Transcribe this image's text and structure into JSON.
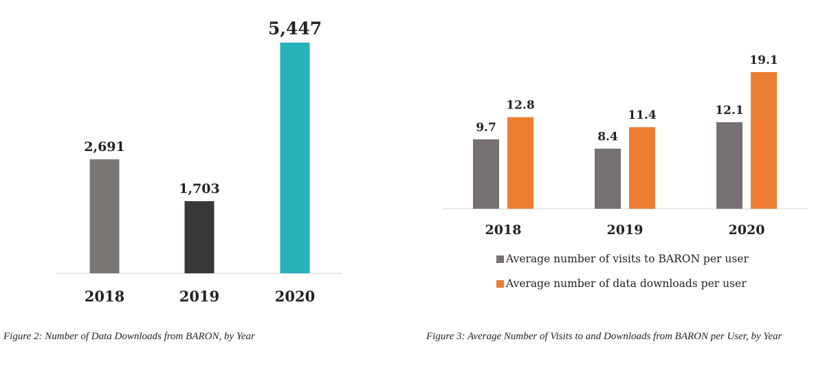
{
  "chart_data": [
    {
      "type": "bar",
      "categories": [
        "2018",
        "2019",
        "2020"
      ],
      "values": [
        2691,
        1703,
        5447
      ],
      "value_labels": [
        "2,691",
        "1,703",
        "5,447"
      ],
      "colors": [
        "#7a7674",
        "#3a3837",
        "#27b1b9"
      ],
      "title": "",
      "xlabel": "",
      "ylabel": "",
      "ylim": [
        0,
        5447
      ],
      "grid": false,
      "caption": "Figure 2: Number of Data Downloads from BARON, by Year"
    },
    {
      "type": "bar",
      "categories": [
        "2018",
        "2019",
        "2020"
      ],
      "series": [
        {
          "name": "Average number of visits to BARON per user",
          "values": [
            9.7,
            8.4,
            12.1
          ],
          "value_labels": [
            "9.7",
            "8.4",
            "12.1"
          ],
          "color": "#767170"
        },
        {
          "name": "Average number of data downloads per user",
          "values": [
            12.8,
            11.4,
            19.1
          ],
          "value_labels": [
            "12.8",
            "11.4",
            "19.1"
          ],
          "color": "#ed7d31"
        }
      ],
      "title": "",
      "xlabel": "",
      "ylabel": "",
      "ylim": [
        0,
        19.1
      ],
      "grid": false,
      "legend_position": "bottom",
      "caption": "Figure 3: Average Number of Visits to and Downloads from BARON per User, by Year"
    }
  ]
}
